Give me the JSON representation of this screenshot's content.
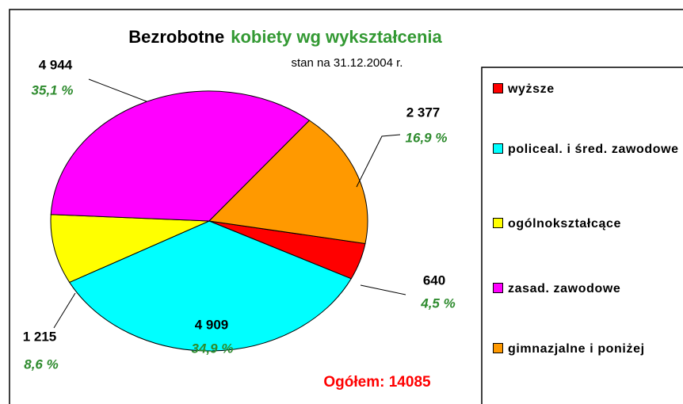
{
  "chart_data": {
    "type": "pie",
    "title": "Bezrobotne",
    "title_highlight": "kobiety wg wykształcenia",
    "subtitle": "stan na 31.12.2004 r.",
    "annotation": "Ogółem: 14085",
    "categories": [
      "wyższe",
      "policeal. i śred. zawodowe",
      "ogólnokształcące",
      "zasad. zawodowe",
      "gimnazjalne i poniżej"
    ],
    "values": [
      640,
      4909,
      1215,
      4944,
      2377
    ],
    "value_labels": [
      "640",
      "4 909",
      "1 215",
      "4 944",
      "2 377"
    ],
    "percent_labels": [
      "4,5 %",
      "34,9 %",
      "8,6 %",
      "35,1 %",
      "16,9 %"
    ],
    "colors": [
      "#ff0000",
      "#00ffff",
      "#ffff00",
      "#ff00ff",
      "#ff9900"
    ],
    "legend": "right"
  }
}
